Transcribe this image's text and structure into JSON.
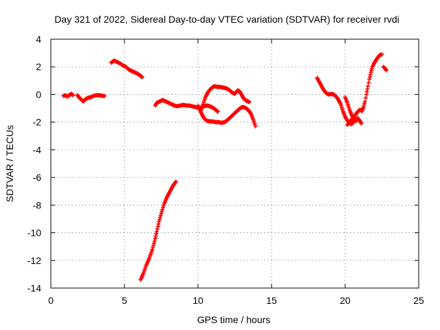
{
  "chart_data": {
    "type": "scatter",
    "title": "Day 321 of 2022, Sidereal Day-to-day VTEC variation (SDTVAR) for receiver rvdi",
    "xlabel": "GPS time / hours",
    "ylabel": "SDTVAR / TECUs",
    "xlim": [
      0,
      25
    ],
    "ylim": [
      -14,
      4
    ],
    "x_ticks": [
      0,
      5,
      10,
      15,
      20,
      25
    ],
    "y_ticks": [
      -14,
      -12,
      -10,
      -8,
      -6,
      -4,
      -2,
      0,
      2,
      4
    ],
    "grid": true,
    "marker": "plus",
    "color": "#ff0000",
    "series": [
      {
        "name": "rvdi",
        "segments": [
          [
            [
              0.85,
              -0.1
            ],
            [
              1.0,
              -0.05
            ],
            [
              1.1,
              -0.15
            ],
            [
              1.25,
              -0.05
            ],
            [
              1.4,
              0.05
            ],
            [
              1.5,
              -0.05
            ]
          ],
          [
            [
              1.8,
              -0.05
            ],
            [
              1.95,
              -0.25
            ],
            [
              2.1,
              -0.4
            ],
            [
              2.2,
              -0.5
            ],
            [
              2.35,
              -0.35
            ],
            [
              2.5,
              -0.25
            ],
            [
              2.7,
              -0.2
            ],
            [
              2.9,
              -0.1
            ],
            [
              3.1,
              -0.05
            ],
            [
              3.3,
              -0.05
            ],
            [
              3.5,
              -0.1
            ],
            [
              3.65,
              -0.1
            ]
          ],
          [
            [
              4.1,
              2.3
            ],
            [
              4.3,
              2.45
            ],
            [
              4.5,
              2.35
            ],
            [
              4.7,
              2.25
            ],
            [
              4.9,
              2.1
            ],
            [
              5.1,
              2.0
            ],
            [
              5.3,
              1.8
            ],
            [
              5.5,
              1.7
            ],
            [
              5.7,
              1.6
            ],
            [
              5.9,
              1.5
            ],
            [
              6.1,
              1.35
            ],
            [
              6.2,
              1.25
            ]
          ],
          [
            [
              6.1,
              -13.4
            ],
            [
              6.3,
              -12.9
            ],
            [
              6.5,
              -12.3
            ],
            [
              6.7,
              -11.8
            ],
            [
              6.9,
              -11.2
            ],
            [
              7.05,
              -10.6
            ],
            [
              7.2,
              -9.9
            ],
            [
              7.35,
              -9.2
            ],
            [
              7.5,
              -8.6
            ],
            [
              7.7,
              -7.9
            ],
            [
              7.9,
              -7.4
            ],
            [
              8.1,
              -7.0
            ],
            [
              8.3,
              -6.6
            ],
            [
              8.5,
              -6.3
            ]
          ],
          [
            [
              7.1,
              -0.8
            ],
            [
              7.2,
              -0.6
            ],
            [
              7.4,
              -0.5
            ],
            [
              7.6,
              -0.4
            ],
            [
              7.8,
              -0.5
            ],
            [
              8.0,
              -0.6
            ],
            [
              8.2,
              -0.7
            ],
            [
              8.4,
              -0.8
            ],
            [
              8.6,
              -0.85
            ],
            [
              8.8,
              -0.8
            ],
            [
              9.0,
              -0.75
            ],
            [
              9.2,
              -0.8
            ],
            [
              9.4,
              -0.8
            ],
            [
              9.6,
              -0.85
            ],
            [
              9.8,
              -0.9
            ],
            [
              10.0,
              -0.95
            ],
            [
              10.2,
              -0.95
            ],
            [
              10.4,
              -0.85
            ],
            [
              10.6,
              -0.8
            ],
            [
              10.8,
              -0.85
            ],
            [
              11.0,
              -0.95
            ],
            [
              11.2,
              -1.1
            ],
            [
              11.35,
              -1.25
            ]
          ],
          [
            [
              10.0,
              -0.8
            ],
            [
              10.2,
              -1.3
            ],
            [
              10.4,
              -1.7
            ],
            [
              10.6,
              -1.9
            ],
            [
              10.8,
              -1.95
            ],
            [
              11.0,
              -1.95
            ],
            [
              11.2,
              -2.0
            ],
            [
              11.4,
              -2.0
            ],
            [
              11.6,
              -2.05
            ],
            [
              11.8,
              -2.0
            ],
            [
              12.0,
              -1.85
            ],
            [
              12.2,
              -1.65
            ],
            [
              12.4,
              -1.45
            ],
            [
              12.6,
              -1.25
            ],
            [
              12.8,
              -1.05
            ],
            [
              13.0,
              -0.9
            ],
            [
              13.2,
              -0.95
            ],
            [
              13.4,
              -1.1
            ],
            [
              13.6,
              -1.4
            ],
            [
              13.75,
              -1.8
            ],
            [
              13.9,
              -2.3
            ]
          ],
          [
            [
              10.2,
              -1.2
            ],
            [
              10.35,
              -0.7
            ],
            [
              10.5,
              -0.2
            ],
            [
              10.7,
              0.2
            ],
            [
              10.9,
              0.45
            ],
            [
              11.1,
              0.6
            ],
            [
              11.3,
              0.55
            ],
            [
              11.5,
              0.55
            ],
            [
              11.7,
              0.5
            ],
            [
              11.9,
              0.45
            ],
            [
              12.1,
              0.35
            ],
            [
              12.3,
              0.15
            ],
            [
              12.5,
              0.05
            ],
            [
              12.7,
              0.3
            ],
            [
              12.85,
              0.2
            ],
            [
              13.0,
              -0.1
            ],
            [
              13.15,
              -0.35
            ],
            [
              13.3,
              -0.45
            ],
            [
              13.5,
              -0.55
            ]
          ],
          [
            [
              18.1,
              1.2
            ],
            [
              18.3,
              0.8
            ],
            [
              18.5,
              0.4
            ],
            [
              18.7,
              0.1
            ],
            [
              18.9,
              0.0
            ],
            [
              19.1,
              0.05
            ],
            [
              19.3,
              -0.05
            ],
            [
              19.5,
              -0.3
            ],
            [
              19.7,
              -0.7
            ],
            [
              19.85,
              -1.2
            ],
            [
              20.0,
              -1.6
            ],
            [
              20.1,
              -1.8
            ],
            [
              20.25,
              -2.0
            ],
            [
              20.4,
              -2.15
            ],
            [
              20.55,
              -2.05
            ],
            [
              20.7,
              -1.85
            ],
            [
              20.85,
              -1.7
            ],
            [
              21.0,
              -1.9
            ],
            [
              21.1,
              -2.1
            ]
          ],
          [
            [
              20.0,
              -0.2
            ],
            [
              20.15,
              -0.6
            ],
            [
              20.3,
              -1.1
            ],
            [
              20.45,
              -1.5
            ],
            [
              20.6,
              -1.75
            ],
            [
              20.75,
              -1.9
            ],
            [
              20.85,
              -1.8
            ]
          ],
          [
            [
              20.15,
              -2.2
            ],
            [
              20.3,
              -2.0
            ],
            [
              20.45,
              -1.8
            ],
            [
              20.6,
              -1.6
            ],
            [
              20.75,
              -1.4
            ],
            [
              20.9,
              -1.2
            ],
            [
              21.0,
              -1.1
            ],
            [
              21.15,
              -1.2
            ],
            [
              21.25,
              -0.9
            ],
            [
              21.35,
              -0.5
            ],
            [
              21.45,
              0.0
            ],
            [
              21.55,
              0.6
            ],
            [
              21.65,
              1.1
            ],
            [
              21.75,
              1.6
            ],
            [
              21.85,
              2.0
            ],
            [
              21.95,
              2.2
            ],
            [
              22.05,
              2.4
            ],
            [
              22.2,
              2.65
            ],
            [
              22.35,
              2.85
            ],
            [
              22.5,
              2.9
            ]
          ],
          [
            [
              22.6,
              2.0
            ],
            [
              22.7,
              1.9
            ],
            [
              22.8,
              1.75
            ]
          ]
        ]
      }
    ]
  }
}
